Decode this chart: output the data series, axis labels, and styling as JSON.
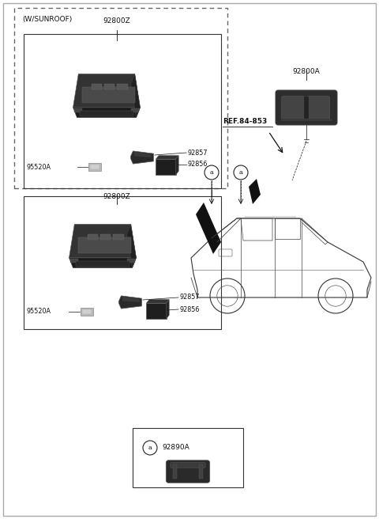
{
  "bg_color": "#ffffff",
  "border_color": "#999999",
  "line_color": "#222222",
  "text_color": "#111111",
  "part_color_dark": "#2a2a2a",
  "part_color_mid": "#555555",
  "part_color_light": "#888888",
  "part_color_white": "#cccccc",
  "sunroof_text": "(W/SUNROOF)",
  "label_92800Z": "92800Z",
  "label_92800A": "92800A",
  "label_92857": "92857",
  "label_92856": "92856",
  "label_95520A": "95520A",
  "label_92890A": "92890A",
  "label_ref": "REF.84-853",
  "font_size_label": 6.5,
  "font_size_small": 5.8
}
